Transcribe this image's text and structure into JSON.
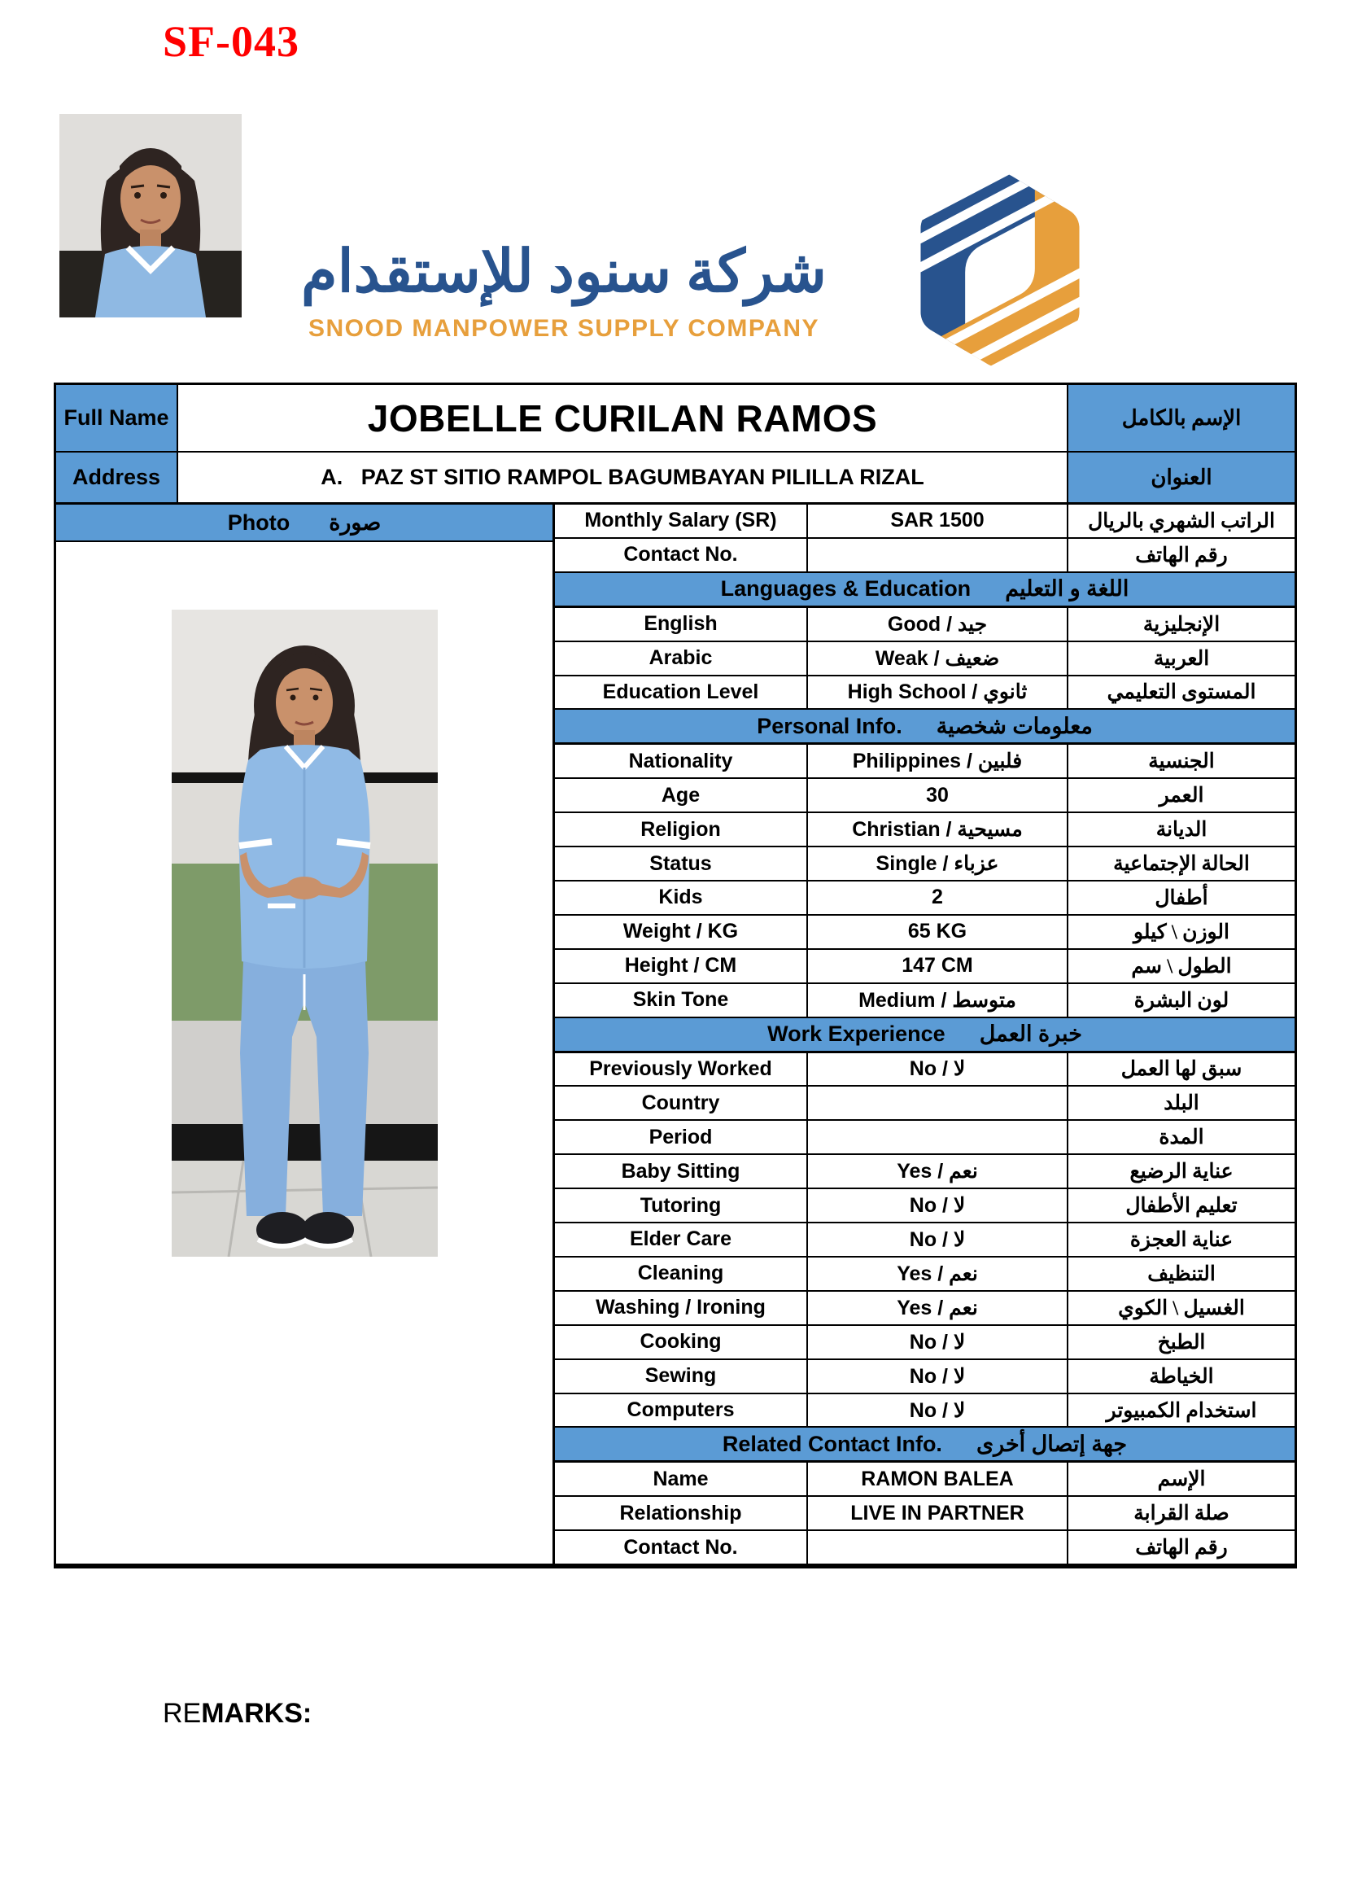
{
  "page": {
    "form_code": "SF-043",
    "remarks_prefix": "RE",
    "remarks_suffix": "MARKS:"
  },
  "logo": {
    "arabic_name": "شركة سنود للإستقدام",
    "english_name": "SNOOD MANPOWER SUPPLY COMPANY"
  },
  "colors": {
    "header_blue": "#5B9BD5",
    "logo_blue": "#28538E",
    "logo_orange": "#E79F3C",
    "form_code_red": "#FF0000"
  },
  "table": {
    "full_name": {
      "label": "Full Name",
      "value": "JOBELLE CURILAN RAMOS",
      "arabic": "الإسم بالكامل"
    },
    "address": {
      "label": "Address",
      "value": "A.   PAZ ST SITIO RAMPOL BAGUMBAYAN PILILLA RIZAL",
      "arabic": "العنوان"
    },
    "photo_header": {
      "label": "Photo",
      "arabic": "صورة"
    },
    "rows": [
      {
        "type": "field",
        "label": "Monthly Salary (SR)",
        "value": "SAR 1500",
        "arabic": "الراتب الشهري بالريال"
      },
      {
        "type": "field",
        "label": "Contact No.",
        "value": "",
        "arabic": "رقم الهاتف"
      },
      {
        "type": "section",
        "key": "languages-education",
        "label": "Languages & Education",
        "arabic": "اللغة و التعليم"
      },
      {
        "type": "field",
        "label": "English",
        "value": "Good / جيد",
        "arabic": "الإنجليزية"
      },
      {
        "type": "field",
        "label": "Arabic",
        "value": "Weak / ضعيف",
        "arabic": "العربية"
      },
      {
        "type": "field",
        "label": "Education Level",
        "value": "High School / ثانوي",
        "arabic": "المستوى التعليمي"
      },
      {
        "type": "section",
        "key": "personal-info",
        "label": "Personal Info.",
        "arabic": "معلومات شخصية"
      },
      {
        "type": "field",
        "label": "Nationality",
        "value": "Philippines / فلبين",
        "arabic": "الجنسية"
      },
      {
        "type": "field",
        "label": "Age",
        "value": "30",
        "arabic": "العمر"
      },
      {
        "type": "field",
        "label": "Religion",
        "value": "Christian / مسيحية",
        "arabic": "الديانة"
      },
      {
        "type": "field",
        "label": "Status",
        "value": "Single / عزباء",
        "arabic": "الحالة الإجتماعية"
      },
      {
        "type": "field",
        "label": "Kids",
        "value": "2",
        "arabic": "أطفال"
      },
      {
        "type": "field",
        "label": "Weight / KG",
        "value": "65 KG",
        "arabic": "الوزن \\ كيلو"
      },
      {
        "type": "field",
        "label": "Height / CM",
        "value": "147 CM",
        "arabic": "الطول \\ سم"
      },
      {
        "type": "field",
        "label": "Skin Tone",
        "value": "Medium / متوسط",
        "arabic": "لون البشرة"
      },
      {
        "type": "section",
        "key": "work-experience",
        "label": "Work Experience",
        "arabic": "خبرة العمل"
      },
      {
        "type": "field",
        "label": "Previously Worked",
        "value": "No / لا",
        "arabic": "سبق لها العمل"
      },
      {
        "type": "field",
        "label": "Country",
        "value": "",
        "arabic": "البلد"
      },
      {
        "type": "field",
        "label": "Period",
        "value": "",
        "arabic": "المدة"
      },
      {
        "type": "field",
        "label": "Baby Sitting",
        "value": "Yes / نعم",
        "arabic": "عناية الرضيع"
      },
      {
        "type": "field",
        "label": "Tutoring",
        "value": "No / لا",
        "arabic": "تعليم الأطفال"
      },
      {
        "type": "field",
        "label": "Elder Care",
        "value": "No / لا",
        "arabic": "عناية العجزة"
      },
      {
        "type": "field",
        "label": "Cleaning",
        "value": "Yes / نعم",
        "arabic": "التنظيف"
      },
      {
        "type": "field",
        "label": "Washing / Ironing",
        "value": "Yes / نعم",
        "arabic": "الغسيل \\ الكوي"
      },
      {
        "type": "field",
        "label": "Cooking",
        "value": "No / لا",
        "arabic": "الطبخ"
      },
      {
        "type": "field",
        "label": "Sewing",
        "value": "No / لا",
        "arabic": "الخياطة"
      },
      {
        "type": "field",
        "label": "Computers",
        "value": "No / لا",
        "arabic": "استخدام الكمبيوتر"
      },
      {
        "type": "section",
        "key": "related-contact-info",
        "label": "Related Contact Info.",
        "arabic": "جهة إتصال أخرى"
      },
      {
        "type": "field",
        "label": "Name",
        "value": "RAMON BALEA",
        "arabic": "الإسم"
      },
      {
        "type": "field",
        "label": "Relationship",
        "value": "LIVE IN PARTNER",
        "arabic": "صلة القرابة"
      },
      {
        "type": "field",
        "label": "Contact No.",
        "value": "",
        "arabic": "رقم الهاتف"
      }
    ]
  }
}
